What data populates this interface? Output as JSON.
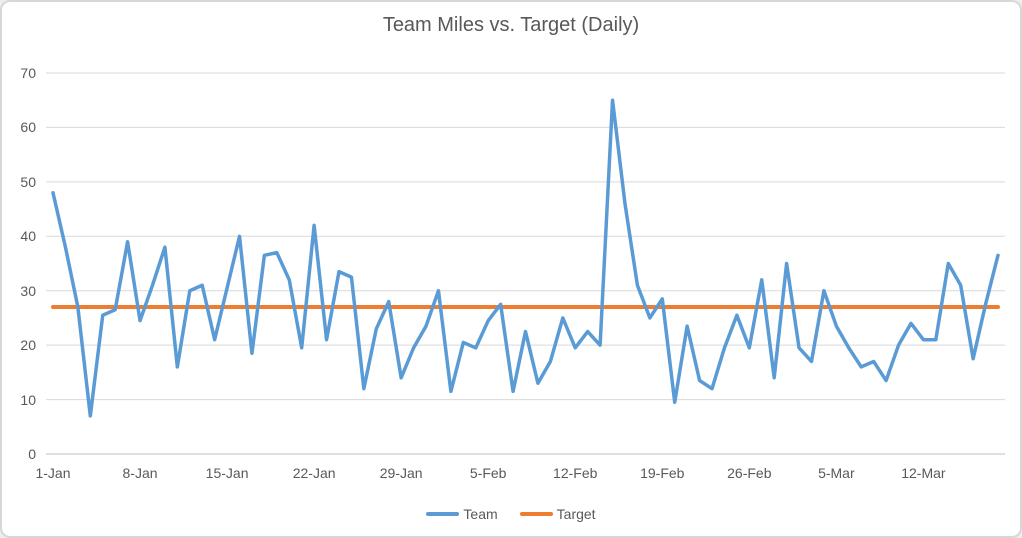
{
  "chart_data": {
    "type": "line",
    "title": "Team Miles vs. Target (Daily)",
    "xlabel": "",
    "ylabel": "",
    "ylim": [
      0,
      70
    ],
    "y_ticks": [
      0,
      10,
      20,
      30,
      40,
      50,
      60,
      70
    ],
    "grid": true,
    "legend_position": "bottom",
    "x_tick_labels": [
      "1-Jan",
      "8-Jan",
      "15-Jan",
      "22-Jan",
      "29-Jan",
      "5-Feb",
      "12-Feb",
      "19-Feb",
      "26-Feb",
      "5-Mar",
      "12-Mar"
    ],
    "x_tick_indices": [
      0,
      7,
      14,
      21,
      28,
      35,
      42,
      49,
      56,
      63,
      70
    ],
    "dates": [
      "1-Jan",
      "2-Jan",
      "3-Jan",
      "4-Jan",
      "5-Jan",
      "6-Jan",
      "7-Jan",
      "8-Jan",
      "9-Jan",
      "10-Jan",
      "11-Jan",
      "12-Jan",
      "13-Jan",
      "14-Jan",
      "15-Jan",
      "16-Jan",
      "17-Jan",
      "18-Jan",
      "19-Jan",
      "20-Jan",
      "21-Jan",
      "22-Jan",
      "23-Jan",
      "24-Jan",
      "25-Jan",
      "26-Jan",
      "27-Jan",
      "28-Jan",
      "29-Jan",
      "30-Jan",
      "31-Jan",
      "1-Feb",
      "2-Feb",
      "3-Feb",
      "4-Feb",
      "5-Feb",
      "6-Feb",
      "7-Feb",
      "8-Feb",
      "9-Feb",
      "10-Feb",
      "11-Feb",
      "12-Feb",
      "13-Feb",
      "14-Feb",
      "15-Feb",
      "16-Feb",
      "17-Feb",
      "18-Feb",
      "19-Feb",
      "20-Feb",
      "21-Feb",
      "22-Feb",
      "23-Feb",
      "24-Feb",
      "25-Feb",
      "26-Feb",
      "27-Feb",
      "28-Feb",
      "1-Mar",
      "2-Mar",
      "3-Mar",
      "4-Mar",
      "5-Mar",
      "6-Mar",
      "7-Mar",
      "8-Mar",
      "9-Mar",
      "10-Mar",
      "11-Mar",
      "12-Mar",
      "13-Mar",
      "14-Mar",
      "15-Mar",
      "16-Mar",
      "17-Mar",
      "18-Mar"
    ],
    "series": [
      {
        "name": "Team",
        "color": "#5B9BD5",
        "values": [
          48,
          38,
          27,
          7,
          25.5,
          26.5,
          39,
          24.5,
          31,
          38,
          16,
          30,
          31,
          21,
          30.5,
          40,
          18.5,
          36.5,
          37,
          32,
          19.5,
          42,
          21,
          33.5,
          32.5,
          12,
          23,
          28,
          14,
          19.5,
          23.5,
          30,
          11.5,
          20.5,
          19.5,
          24.5,
          27.5,
          11.5,
          22.5,
          13,
          17,
          25,
          19.5,
          22.5,
          20,
          65,
          46,
          31,
          25,
          28.5,
          9.5,
          23.5,
          13.5,
          12,
          19.5,
          25.5,
          19.5,
          32,
          14,
          35,
          19.5,
          17,
          30,
          23.5,
          19.5,
          16,
          17,
          13.5,
          20,
          24,
          21,
          21,
          35,
          31,
          17.5,
          27.5,
          36.5
        ]
      },
      {
        "name": "Target",
        "color": "#ED7D31",
        "constant_value": 27
      }
    ]
  },
  "colors": {
    "team": "#5B9BD5",
    "target": "#ED7D31",
    "text": "#595959",
    "gridline": "#D9D9D9",
    "axis": "#BFBFBF"
  },
  "legend": {
    "team_label": "Team",
    "target_label": "Target"
  }
}
